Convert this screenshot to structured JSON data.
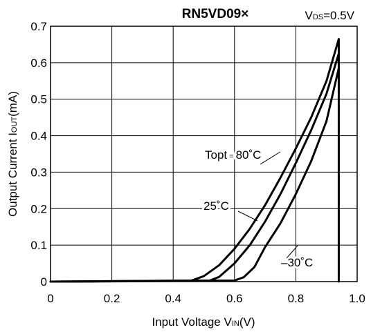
{
  "chart_data": {
    "type": "line",
    "title": "RN5VD09×",
    "condition": {
      "main": "V",
      "sub": "DS",
      "rest": "=0.5V"
    },
    "xlabel": {
      "pre": "Input Voltage V",
      "sub": "IN",
      "post": "(V)"
    },
    "ylabel": {
      "pre": "Output Current I",
      "sub": "OUT",
      "post": "(mA)"
    },
    "xlim": [
      0,
      1.0
    ],
    "ylim": [
      0,
      0.7
    ],
    "xticks": [
      0,
      0.2,
      0.4,
      0.6,
      0.8,
      1.0
    ],
    "xtick_labels": [
      "0",
      "0.2",
      "0.4",
      "0.6",
      "0.8",
      "1.0"
    ],
    "yticks": [
      0,
      0.1,
      0.2,
      0.3,
      0.4,
      0.5,
      0.6,
      0.7
    ],
    "ytick_labels": [
      "0",
      "0.1",
      "0.2",
      "0.3",
      "0.4",
      "0.5",
      "0.6",
      "0.7"
    ],
    "grid": true,
    "line_color": "#000000",
    "series": [
      {
        "x": [
          0,
          0.46,
          0.5,
          0.55,
          0.6,
          0.65,
          0.7,
          0.75,
          0.8,
          0.85,
          0.9,
          0.94,
          0.94
        ],
        "y": [
          0,
          0.003,
          0.015,
          0.045,
          0.09,
          0.145,
          0.21,
          0.285,
          0.365,
          0.45,
          0.55,
          0.665,
          0
        ]
      },
      {
        "x": [
          0,
          0.52,
          0.55,
          0.6,
          0.65,
          0.7,
          0.75,
          0.8,
          0.85,
          0.9,
          0.94
        ],
        "y": [
          0,
          0.003,
          0.013,
          0.05,
          0.1,
          0.165,
          0.24,
          0.325,
          0.415,
          0.515,
          0.625
        ]
      },
      {
        "x": [
          0.06,
          0.6,
          0.63,
          0.665,
          0.7,
          0.75,
          0.8,
          0.85,
          0.9,
          0.94
        ],
        "y": [
          0,
          0.003,
          0.012,
          0.04,
          0.095,
          0.16,
          0.24,
          0.33,
          0.44,
          0.585
        ]
      }
    ],
    "annotations": {
      "t80": {
        "pre": "Topt",
        "eq": "=",
        "val": "80˚C"
      },
      "t25": "25˚C",
      "t30": "–30˚C"
    }
  }
}
